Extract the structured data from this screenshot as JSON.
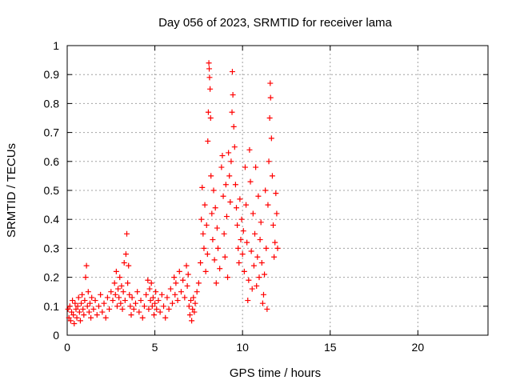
{
  "chart_data": {
    "type": "scatter",
    "title": "Day 056 of 2023, SRMTID for receiver lama",
    "xlabel": "GPS time / hours",
    "ylabel": "SRMTID / TECUs",
    "xlim": [
      0,
      24
    ],
    "ylim": [
      0,
      1
    ],
    "xticks": [
      0,
      5,
      10,
      15,
      20
    ],
    "yticks": [
      0,
      0.1,
      0.2,
      0.3,
      0.4,
      0.5,
      0.6,
      0.7,
      0.8,
      0.9,
      1
    ],
    "xtick_labels": [
      "0",
      "5",
      "10",
      "15",
      "20"
    ],
    "ytick_labels": [
      "0",
      "0.1",
      "0.2",
      "0.3",
      "0.4",
      "0.5",
      "0.6",
      "0.7",
      "0.8",
      "0.9",
      "1"
    ],
    "grid": true,
    "marker": "+",
    "series": [
      {
        "name": "SRMTID",
        "color": "#ff0000",
        "points": [
          [
            0.05,
            0.09
          ],
          [
            0.1,
            0.06
          ],
          [
            0.15,
            0.1
          ],
          [
            0.2,
            0.05
          ],
          [
            0.25,
            0.08
          ],
          [
            0.3,
            0.12
          ],
          [
            0.35,
            0.07
          ],
          [
            0.4,
            0.04
          ],
          [
            0.45,
            0.11
          ],
          [
            0.5,
            0.09
          ],
          [
            0.55,
            0.06
          ],
          [
            0.6,
            0.1
          ],
          [
            0.65,
            0.13
          ],
          [
            0.7,
            0.08
          ],
          [
            0.75,
            0.05
          ],
          [
            0.8,
            0.11
          ],
          [
            0.85,
            0.14
          ],
          [
            0.9,
            0.09
          ],
          [
            0.95,
            0.07
          ],
          [
            1.0,
            0.12
          ],
          [
            1.05,
            0.2
          ],
          [
            1.1,
            0.24
          ],
          [
            1.15,
            0.1
          ],
          [
            1.2,
            0.15
          ],
          [
            1.25,
            0.08
          ],
          [
            1.3,
            0.11
          ],
          [
            1.35,
            0.06
          ],
          [
            1.4,
            0.13
          ],
          [
            1.5,
            0.09
          ],
          [
            1.6,
            0.12
          ],
          [
            1.7,
            0.07
          ],
          [
            1.8,
            0.1
          ],
          [
            1.9,
            0.14
          ],
          [
            2.0,
            0.08
          ],
          [
            2.1,
            0.11
          ],
          [
            2.2,
            0.06
          ],
          [
            2.3,
            0.13
          ],
          [
            2.4,
            0.09
          ],
          [
            2.5,
            0.15
          ],
          [
            2.6,
            0.12
          ],
          [
            2.7,
            0.18
          ],
          [
            2.75,
            0.14
          ],
          [
            2.8,
            0.22
          ],
          [
            2.85,
            0.1
          ],
          [
            2.9,
            0.16
          ],
          [
            2.95,
            0.13
          ],
          [
            3.0,
            0.2
          ],
          [
            3.05,
            0.11
          ],
          [
            3.1,
            0.17
          ],
          [
            3.15,
            0.09
          ],
          [
            3.2,
            0.15
          ],
          [
            3.25,
            0.25
          ],
          [
            3.3,
            0.12
          ],
          [
            3.35,
            0.28
          ],
          [
            3.4,
            0.35
          ],
          [
            3.45,
            0.18
          ],
          [
            3.5,
            0.24
          ],
          [
            3.55,
            0.14
          ],
          [
            3.6,
            0.1
          ],
          [
            3.65,
            0.07
          ],
          [
            3.7,
            0.13
          ],
          [
            3.8,
            0.09
          ],
          [
            3.9,
            0.11
          ],
          [
            4.0,
            0.15
          ],
          [
            4.1,
            0.08
          ],
          [
            4.2,
            0.12
          ],
          [
            4.3,
            0.06
          ],
          [
            4.4,
            0.1
          ],
          [
            4.5,
            0.14
          ],
          [
            4.6,
            0.19
          ],
          [
            4.65,
            0.09
          ],
          [
            4.7,
            0.16
          ],
          [
            4.75,
            0.12
          ],
          [
            4.8,
            0.18
          ],
          [
            4.85,
            0.1
          ],
          [
            4.9,
            0.13
          ],
          [
            4.95,
            0.07
          ],
          [
            5.0,
            0.11
          ],
          [
            5.05,
            0.15
          ],
          [
            5.1,
            0.09
          ],
          [
            5.2,
            0.12
          ],
          [
            5.3,
            0.08
          ],
          [
            5.4,
            0.14
          ],
          [
            5.5,
            0.1
          ],
          [
            5.6,
            0.06
          ],
          [
            5.7,
            0.13
          ],
          [
            5.8,
            0.09
          ],
          [
            5.9,
            0.16
          ],
          [
            6.0,
            0.11
          ],
          [
            6.1,
            0.2
          ],
          [
            6.15,
            0.14
          ],
          [
            6.2,
            0.18
          ],
          [
            6.3,
            0.12
          ],
          [
            6.4,
            0.22
          ],
          [
            6.5,
            0.15
          ],
          [
            6.6,
            0.19
          ],
          [
            6.7,
            0.13
          ],
          [
            6.8,
            0.24
          ],
          [
            6.85,
            0.17
          ],
          [
            6.9,
            0.21
          ],
          [
            6.95,
            0.1
          ],
          [
            7.0,
            0.07
          ],
          [
            7.05,
            0.12
          ],
          [
            7.1,
            0.05
          ],
          [
            7.15,
            0.09
          ],
          [
            7.2,
            0.13
          ],
          [
            7.25,
            0.08
          ],
          [
            7.3,
            0.11
          ],
          [
            7.4,
            0.15
          ],
          [
            7.5,
            0.18
          ],
          [
            7.6,
            0.25
          ],
          [
            7.65,
            0.4
          ],
          [
            7.7,
            0.51
          ],
          [
            7.75,
            0.35
          ],
          [
            7.8,
            0.3
          ],
          [
            7.85,
            0.45
          ],
          [
            7.9,
            0.22
          ],
          [
            7.95,
            0.38
          ],
          [
            8.0,
            0.28
          ],
          [
            8.02,
            0.67
          ],
          [
            8.05,
            0.77
          ],
          [
            8.08,
            0.94
          ],
          [
            8.1,
            0.92
          ],
          [
            8.12,
            0.89
          ],
          [
            8.15,
            0.85
          ],
          [
            8.18,
            0.75
          ],
          [
            8.2,
            0.55
          ],
          [
            8.25,
            0.42
          ],
          [
            8.3,
            0.33
          ],
          [
            8.35,
            0.5
          ],
          [
            8.4,
            0.26
          ],
          [
            8.45,
            0.44
          ],
          [
            8.5,
            0.18
          ],
          [
            8.55,
            0.37
          ],
          [
            8.6,
            0.3
          ],
          [
            8.7,
            0.23
          ],
          [
            8.8,
            0.58
          ],
          [
            8.85,
            0.62
          ],
          [
            8.9,
            0.48
          ],
          [
            8.95,
            0.35
          ],
          [
            9.0,
            0.27
          ],
          [
            9.05,
            0.52
          ],
          [
            9.1,
            0.41
          ],
          [
            9.15,
            0.2
          ],
          [
            9.2,
            0.63
          ],
          [
            9.25,
            0.55
          ],
          [
            9.3,
            0.46
          ],
          [
            9.35,
            0.6
          ],
          [
            9.4,
            0.77
          ],
          [
            9.42,
            0.91
          ],
          [
            9.45,
            0.83
          ],
          [
            9.5,
            0.72
          ],
          [
            9.55,
            0.65
          ],
          [
            9.6,
            0.52
          ],
          [
            9.65,
            0.44
          ],
          [
            9.7,
            0.38
          ],
          [
            9.75,
            0.3
          ],
          [
            9.8,
            0.25
          ],
          [
            9.85,
            0.47
          ],
          [
            9.9,
            0.33
          ],
          [
            9.95,
            0.4
          ],
          [
            10.0,
            0.28
          ],
          [
            10.05,
            0.36
          ],
          [
            10.1,
            0.22
          ],
          [
            10.15,
            0.58
          ],
          [
            10.2,
            0.45
          ],
          [
            10.25,
            0.32
          ],
          [
            10.3,
            0.12
          ],
          [
            10.35,
            0.19
          ],
          [
            10.4,
            0.64
          ],
          [
            10.45,
            0.53
          ],
          [
            10.5,
            0.29
          ],
          [
            10.55,
            0.16
          ],
          [
            10.6,
            0.42
          ],
          [
            10.65,
            0.24
          ],
          [
            10.7,
            0.35
          ],
          [
            10.75,
            0.58
          ],
          [
            10.8,
            0.17
          ],
          [
            10.85,
            0.27
          ],
          [
            10.9,
            0.48
          ],
          [
            10.95,
            0.2
          ],
          [
            11.0,
            0.33
          ],
          [
            11.05,
            0.39
          ],
          [
            11.1,
            0.25
          ],
          [
            11.15,
            0.11
          ],
          [
            11.2,
            0.14
          ],
          [
            11.25,
            0.21
          ],
          [
            11.3,
            0.5
          ],
          [
            11.35,
            0.3
          ],
          [
            11.4,
            0.09
          ],
          [
            11.45,
            0.45
          ],
          [
            11.5,
            0.6
          ],
          [
            11.55,
            0.75
          ],
          [
            11.58,
            0.87
          ],
          [
            11.6,
            0.82
          ],
          [
            11.65,
            0.68
          ],
          [
            11.7,
            0.55
          ],
          [
            11.75,
            0.38
          ],
          [
            11.8,
            0.27
          ],
          [
            11.85,
            0.32
          ],
          [
            11.9,
            0.49
          ],
          [
            11.95,
            0.42
          ],
          [
            12.0,
            0.3
          ]
        ]
      }
    ]
  }
}
